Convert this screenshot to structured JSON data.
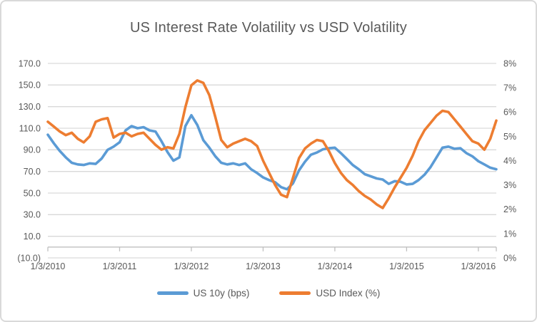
{
  "title": "US Interest Rate Volatility vs USD Volatility",
  "colors": {
    "series_blue": "#5B9BD5",
    "series_orange": "#ED7D31",
    "gridline": "#D9D9D9",
    "axis_line": "#BFBFBF",
    "text": "#595959",
    "frame_border": "#D9D9D9"
  },
  "chart_data": {
    "type": "line",
    "title": "US Interest Rate Volatility vs USD Volatility",
    "grid": true,
    "legend_position": "bottom",
    "x_axis": {
      "tick_labels": [
        "1/3/2010",
        "1/3/2011",
        "1/3/2012",
        "1/3/2013",
        "1/3/2014",
        "1/3/2015",
        "1/3/2016"
      ],
      "sample_start": "1/3/2010",
      "sample_interval": "monthly",
      "points": 76
    },
    "left_axis": {
      "min": -10,
      "max": 170,
      "tick_labels": [
        "170.0",
        "150.0",
        "130.0",
        "110.0",
        "90.0",
        "70.0",
        "50.0",
        "30.0",
        "10.0",
        "(10.0)"
      ]
    },
    "right_axis": {
      "min": 0,
      "max": 8,
      "tick_labels": [
        "8%",
        "7%",
        "6%",
        "5%",
        "4%",
        "3%",
        "2%",
        "1%",
        "0%"
      ]
    },
    "series": [
      {
        "name": "US 10y (bps)",
        "axis": "left",
        "color": "#5B9BD5",
        "values": [
          104,
          96,
          89,
          83,
          78,
          76.5,
          76,
          77.5,
          77,
          82,
          90,
          93,
          97,
          108,
          112,
          110,
          111,
          108,
          107,
          98,
          88,
          80,
          83,
          112,
          122,
          113,
          99,
          92,
          84,
          78,
          76.5,
          77.5,
          76,
          77.5,
          72,
          68.5,
          64.5,
          62,
          60,
          55.5,
          53.5,
          59,
          71,
          79,
          85.5,
          87.5,
          90.5,
          91.5,
          92,
          87,
          81.5,
          76,
          72,
          67.5,
          65.5,
          63.5,
          62.5,
          58.5,
          61,
          60.5,
          58,
          58.5,
          62,
          67,
          74,
          83,
          92,
          93,
          91,
          91.5,
          87,
          84,
          79.5,
          76.5,
          73.5,
          72
        ]
      },
      {
        "name": "USD Index (%)",
        "axis": "right",
        "color": "#ED7D31",
        "values": [
          5.6,
          5.4,
          5.2,
          5.05,
          5.15,
          4.9,
          4.75,
          5.0,
          5.6,
          5.7,
          5.75,
          4.95,
          5.1,
          5.15,
          5.0,
          5.1,
          5.15,
          4.9,
          4.65,
          4.45,
          4.55,
          4.5,
          5.1,
          6.2,
          7.1,
          7.3,
          7.2,
          6.7,
          5.8,
          4.85,
          4.55,
          4.7,
          4.8,
          4.9,
          4.8,
          4.6,
          4.0,
          3.5,
          3.0,
          2.6,
          2.5,
          3.3,
          4.1,
          4.5,
          4.7,
          4.85,
          4.8,
          4.4,
          3.9,
          3.5,
          3.2,
          3.0,
          2.75,
          2.55,
          2.4,
          2.2,
          2.05,
          2.45,
          2.9,
          3.3,
          3.7,
          4.2,
          4.8,
          5.25,
          5.55,
          5.85,
          6.05,
          6.0,
          5.7,
          5.4,
          5.1,
          4.8,
          4.7,
          4.45,
          4.9,
          5.65
        ]
      }
    ]
  }
}
